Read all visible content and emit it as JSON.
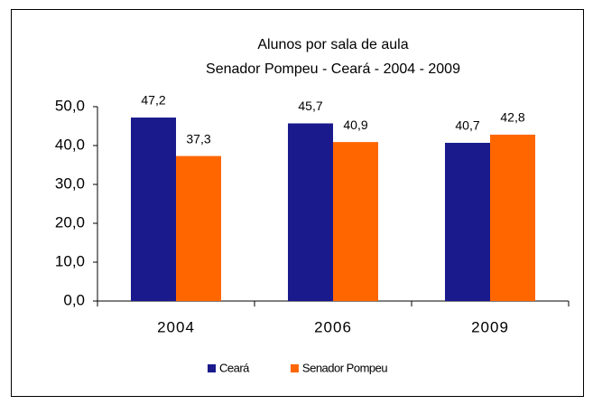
{
  "chart_data": {
    "type": "bar",
    "title": "Alunos por sala de aula",
    "subtitle": "Senador Pompeu - Ceará - 2004 - 2009",
    "categories": [
      "2004",
      "2006",
      "2009"
    ],
    "series": [
      {
        "name": "Ceará",
        "color": "#1a1a8c",
        "values": [
          47.2,
          45.7,
          40.7
        ],
        "value_labels": [
          "47,2",
          "45,7",
          "40,7"
        ]
      },
      {
        "name": "Senador Pompeu",
        "color": "#ff6600",
        "values": [
          37.3,
          40.9,
          42.8
        ],
        "value_labels": [
          "37,3",
          "40,9",
          "42,8"
        ]
      }
    ],
    "ylim": [
      0,
      50
    ],
    "yticks": [
      {
        "value": 0,
        "label": "0,0"
      },
      {
        "value": 10,
        "label": "10,0"
      },
      {
        "value": 20,
        "label": "20,0"
      },
      {
        "value": 30,
        "label": "30,0"
      },
      {
        "value": 40,
        "label": "40,0"
      },
      {
        "value": 50,
        "label": "50,0"
      }
    ],
    "grid": false,
    "legend": "bottom"
  }
}
